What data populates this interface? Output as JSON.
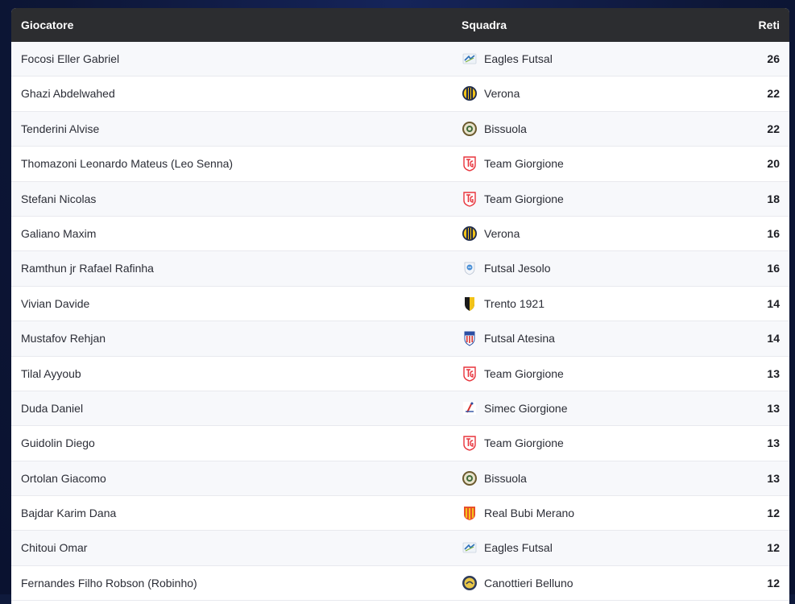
{
  "header": {
    "player": "Giocatore",
    "team": "Squadra",
    "goals": "Reti"
  },
  "rows": [
    {
      "player": "Focosi Eller Gabriel",
      "team": "Eagles Futsal",
      "goals": "26",
      "logo": "eagles-logo-icon"
    },
    {
      "player": "Ghazi Abdelwahed",
      "team": "Verona",
      "goals": "22",
      "logo": "verona-logo-icon"
    },
    {
      "player": "Tenderini Alvise",
      "team": "Bissuola",
      "goals": "22",
      "logo": "bissuola-logo-icon"
    },
    {
      "player": "Thomazoni Leonardo Mateus (Leo Senna)",
      "team": "Team Giorgione",
      "goals": "20",
      "logo": "team-giorgione-logo-icon"
    },
    {
      "player": "Stefani Nicolas",
      "team": "Team Giorgione",
      "goals": "18",
      "logo": "team-giorgione-logo-icon"
    },
    {
      "player": "Galiano Maxim",
      "team": "Verona",
      "goals": "16",
      "logo": "verona-logo-icon"
    },
    {
      "player": "Ramthun jr Rafael Rafinha",
      "team": "Futsal Jesolo",
      "goals": "16",
      "logo": "jesolo-logo-icon"
    },
    {
      "player": "Vivian Davide",
      "team": "Trento 1921",
      "goals": "14",
      "logo": "trento-logo-icon"
    },
    {
      "player": "Mustafov Rehjan",
      "team": "Futsal Atesina",
      "goals": "14",
      "logo": "atesina-logo-icon"
    },
    {
      "player": "Tilal Ayyoub",
      "team": "Team Giorgione",
      "goals": "13",
      "logo": "team-giorgione-logo-icon"
    },
    {
      "player": "Duda Daniel",
      "team": "Simec Giorgione",
      "goals": "13",
      "logo": "simec-logo-icon"
    },
    {
      "player": "Guidolin Diego",
      "team": "Team Giorgione",
      "goals": "13",
      "logo": "team-giorgione-logo-icon"
    },
    {
      "player": "Ortolan Giacomo",
      "team": "Bissuola",
      "goals": "13",
      "logo": "bissuola-logo-icon"
    },
    {
      "player": "Bajdar Karim Dana",
      "team": "Real Bubi Merano",
      "goals": "12",
      "logo": "merano-logo-icon"
    },
    {
      "player": "Chitoui Omar",
      "team": "Eagles Futsal",
      "goals": "12",
      "logo": "eagles-logo-icon"
    },
    {
      "player": "Fernandes Filho Robson (Robinho)",
      "team": "Canottieri Belluno",
      "goals": "12",
      "logo": "belluno-logo-icon"
    }
  ],
  "colors": {
    "header_bg": "#2c2d30",
    "page_bg": "#0f1a3c",
    "team_giorgione_red": "#e8343c"
  }
}
